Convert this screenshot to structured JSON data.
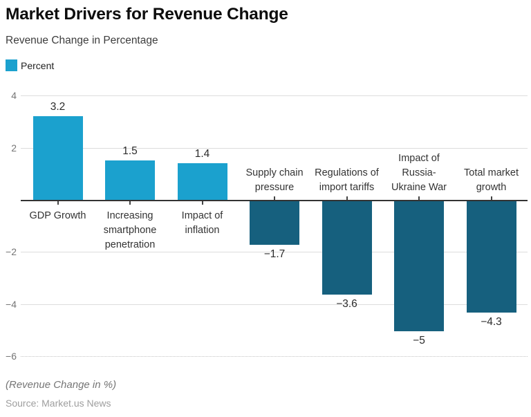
{
  "header": {
    "title": "Market Drivers for Revenue Change",
    "subtitle": "Revenue Change in Percentage",
    "legend": {
      "label": "Percent",
      "swatch_color": "#1BA1CE"
    }
  },
  "footer": {
    "note": "(Revenue Change in %)",
    "source": "Source: Market.us News"
  },
  "chart_data": {
    "type": "bar",
    "title": "Market Drivers for Revenue Change",
    "subtitle": "Revenue Change in Percentage",
    "legend_entries": [
      "Percent"
    ],
    "legend_position": "top-left",
    "categories": [
      "GDP Growth",
      "Increasing smartphone penetration",
      "Impact of inflation",
      "Supply chain pressure",
      "Regulations of import tariffs",
      "Impact of Russia-Ukraine War",
      "Total market growth"
    ],
    "values": [
      3.2,
      1.5,
      1.4,
      -1.7,
      -3.6,
      -5,
      -4.3
    ],
    "value_labels": [
      "3.2",
      "1.5",
      "1.4",
      "−1.7",
      "−3.6",
      "−5",
      "−4.3"
    ],
    "xlabel": "",
    "ylabel": "(Revenue Change in %)",
    "ylim": [
      -6.6,
      4.4
    ],
    "yticks": [
      4,
      2,
      -2,
      -4,
      -6
    ],
    "ytick_labels": [
      "4",
      "2",
      "−2",
      "−4",
      "−6"
    ],
    "grid": true,
    "positive_color": "#1BA1CE",
    "negative_color": "#16607E"
  }
}
